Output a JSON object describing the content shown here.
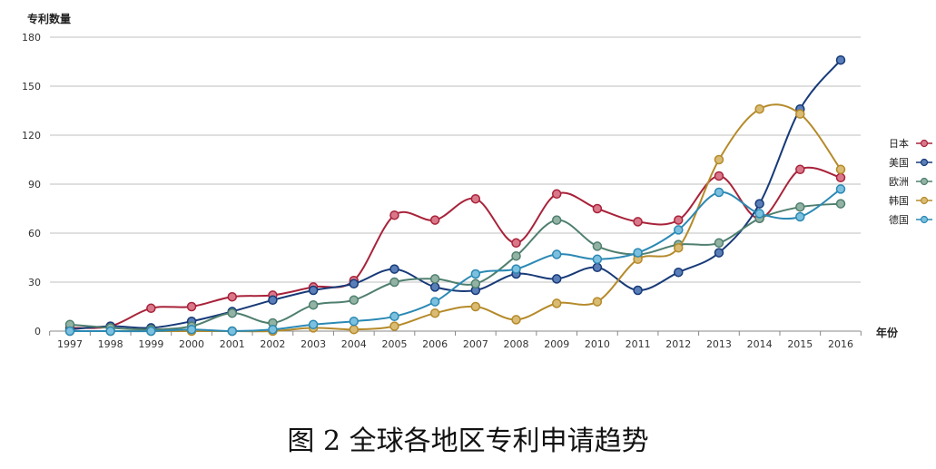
{
  "chart_data": {
    "type": "line",
    "title": "",
    "ylabel": "专利数量",
    "xlabel": "年份",
    "ylim": [
      0,
      180
    ],
    "yticks": [
      0,
      30,
      60,
      90,
      120,
      150,
      180
    ],
    "grid": true,
    "legend": "right",
    "x": [
      "1997",
      "1998",
      "1999",
      "2000",
      "2001",
      "2002",
      "2003",
      "2004",
      "2005",
      "2006",
      "2007",
      "2008",
      "2009",
      "2010",
      "2011",
      "2012",
      "2013",
      "2014",
      "2015",
      "2016"
    ],
    "series": [
      {
        "name": "日本",
        "color": "#a8233a",
        "fill": "#d9788a",
        "values": [
          2,
          3,
          14,
          15,
          21,
          22,
          27,
          31,
          71,
          68,
          81,
          54,
          84,
          75,
          67,
          68,
          95,
          69,
          99,
          94
        ]
      },
      {
        "name": "美国",
        "color": "#173a78",
        "fill": "#5a7fb8",
        "values": [
          1,
          3,
          2,
          6,
          12,
          19,
          25,
          29,
          38,
          27,
          25,
          35,
          32,
          39,
          25,
          36,
          48,
          78,
          136,
          166
        ]
      },
      {
        "name": "欧洲",
        "color": "#4f7f6f",
        "fill": "#92b3a4",
        "values": [
          4,
          2,
          1,
          3,
          11,
          5,
          16,
          19,
          30,
          32,
          29,
          46,
          68,
          52,
          47,
          53,
          54,
          69,
          76,
          78
        ]
      },
      {
        "name": "韩国",
        "color": "#b58a2a",
        "fill": "#d9bb74",
        "values": [
          0,
          0,
          0,
          0,
          0,
          0,
          2,
          1,
          3,
          11,
          15,
          7,
          17,
          18,
          44,
          51,
          105,
          136,
          133,
          99
        ]
      },
      {
        "name": "德国",
        "color": "#2b89b4",
        "fill": "#7cc0df",
        "values": [
          0,
          0,
          0,
          1,
          0,
          1,
          4,
          6,
          9,
          18,
          35,
          38,
          47,
          44,
          48,
          62,
          85,
          72,
          70,
          87
        ]
      }
    ]
  },
  "caption": "图 2 全球各地区专利申请趋势"
}
